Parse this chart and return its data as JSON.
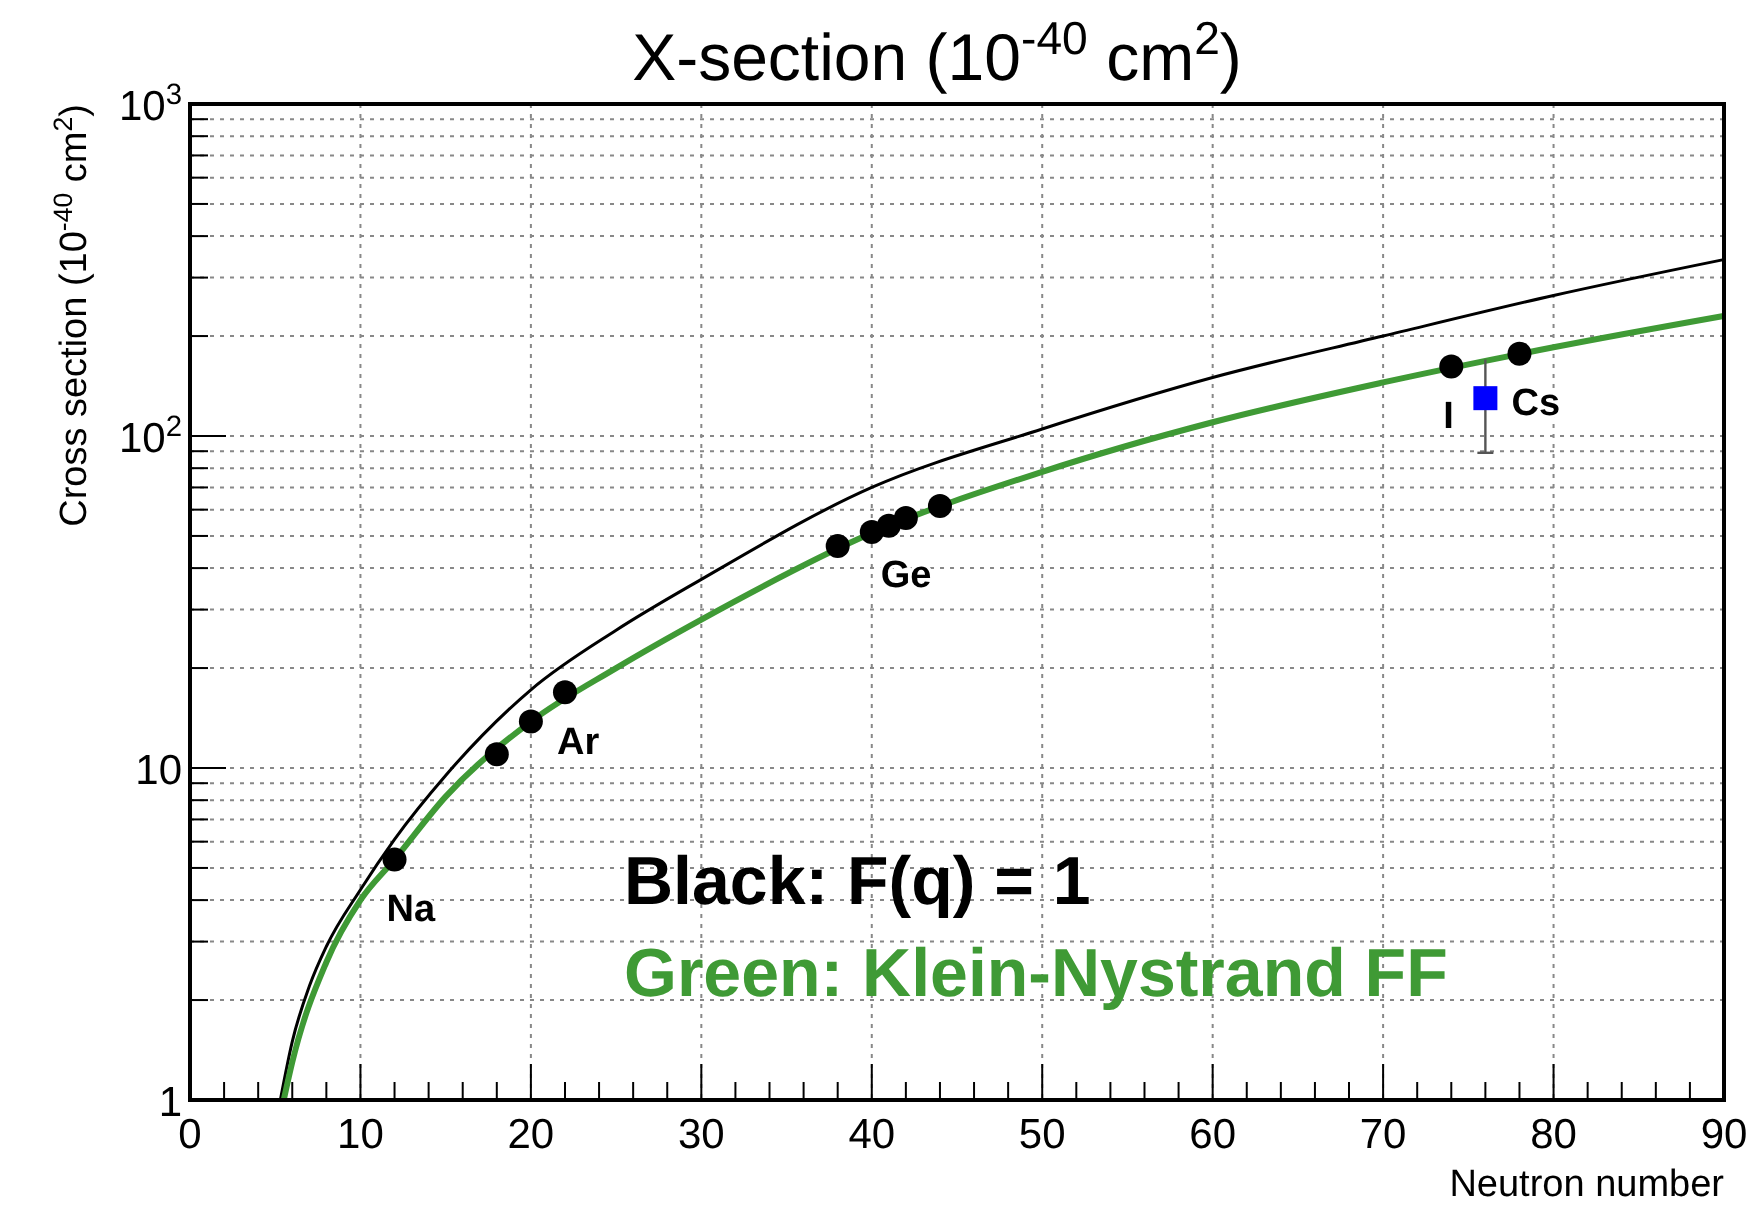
{
  "chart_data": {
    "type": "line",
    "title": "X-section (10$^{-40}$ cm$^{2}$)",
    "xlabel": "Neutron number",
    "ylabel": "Cross section (10$^{-40}$ cm$^{2}$)",
    "log": "y",
    "grid": true,
    "legend": "bottom right",
    "xlim": [
      0,
      90
    ],
    "xticks": [
      0,
      {
        "value": 2,
        "label": null
      },
      {
        "value": 4,
        "label": null
      },
      {
        "value": 6,
        "label": null
      },
      {
        "value": 8,
        "label": null
      },
      10,
      {
        "value": 12,
        "label": null
      },
      {
        "value": 14,
        "label": null
      },
      {
        "value": 16,
        "label": null
      },
      {
        "value": 18,
        "label": null
      },
      20,
      {
        "value": 22,
        "label": null
      },
      {
        "value": 24,
        "label": null
      },
      {
        "value": 26,
        "label": null
      },
      {
        "value": 28,
        "label": null
      },
      30,
      {
        "value": 32,
        "label": null
      },
      {
        "value": 34,
        "label": null
      },
      {
        "value": 36,
        "label": null
      },
      {
        "value": 38,
        "label": null
      },
      40,
      {
        "value": 42,
        "label": null
      },
      {
        "value": 44,
        "label": null
      },
      {
        "value": 46,
        "label": null
      },
      {
        "value": 48,
        "label": null
      },
      50,
      {
        "value": 52,
        "label": null
      },
      {
        "value": 54,
        "label": null
      },
      {
        "value": 56,
        "label": null
      },
      {
        "value": 58,
        "label": null
      },
      60,
      {
        "value": 62,
        "label": null
      },
      {
        "value": 64,
        "label": null
      },
      {
        "value": 66,
        "label": null
      },
      {
        "value": 68,
        "label": null
      },
      70,
      {
        "value": 72,
        "label": null
      },
      {
        "value": 74,
        "label": null
      },
      {
        "value": 76,
        "label": null
      },
      {
        "value": 78,
        "label": null
      },
      80,
      {
        "value": 82,
        "label": null
      },
      {
        "value": 84,
        "label": null
      },
      {
        "value": 86,
        "label": null
      },
      {
        "value": 88,
        "label": null
      },
      90
    ],
    "ylim": [
      1,
      1000
    ],
    "yticks": [
      1,
      {
        "value": 2,
        "label": null
      },
      {
        "value": 3,
        "label": null
      },
      {
        "value": 4,
        "label": null
      },
      {
        "value": 5,
        "label": null
      },
      {
        "value": 6,
        "label": null
      },
      {
        "value": 7,
        "label": null
      },
      {
        "value": 8,
        "label": null
      },
      {
        "value": 9,
        "label": null
      },
      10,
      {
        "value": 20,
        "label": null
      },
      {
        "value": 30,
        "label": null
      },
      {
        "value": 40,
        "label": null
      },
      {
        "value": 50,
        "label": null
      },
      {
        "value": 60,
        "label": null
      },
      {
        "value": 70,
        "label": null
      },
      {
        "value": 80,
        "label": null
      },
      {
        "value": 90,
        "label": null
      },
      {
        "value": 100,
        "label": "10$^{2}$"
      },
      {
        "value": 200,
        "label": null
      },
      {
        "value": 300,
        "label": null
      },
      {
        "value": 400,
        "label": null
      },
      {
        "value": 500,
        "label": null
      },
      {
        "value": 600,
        "label": null
      },
      {
        "value": 700,
        "label": null
      },
      {
        "value": 800,
        "label": null
      },
      {
        "value": 900,
        "label": null
      },
      {
        "value": 1000,
        "label": "10$^{3}$"
      }
    ],
    "series": [
      {
        "name": "Black: F(q) = 1",
        "color": "#000000",
        "marker": "none",
        "x": [
          5.3,
          6,
          7,
          8,
          10,
          12,
          15,
          20,
          25,
          30,
          40,
          50,
          60,
          70,
          80,
          90
        ],
        "values": [
          1,
          1.5,
          2.2,
          2.9,
          4.3,
          6.1,
          9.5,
          17.2,
          26,
          37,
          70,
          105,
          150,
          200,
          265,
          340
        ]
      },
      {
        "name": "Green: Klein-Nystrand FF",
        "color": "#3f9a35",
        "marker": "none",
        "x": [
          5.5,
          6,
          8,
          10,
          12,
          15,
          20,
          25,
          30,
          40,
          50,
          60,
          70,
          80,
          90
        ],
        "values": [
          1,
          1.3,
          2.6,
          4.0,
          5.3,
          8.2,
          13.8,
          20,
          28,
          51,
          78,
          110,
          145,
          185,
          230
        ]
      },
      {
        "color": "#000000",
        "type": "scatter",
        "marker": "circle",
        "x": [
          12,
          18,
          20,
          22,
          38,
          40,
          41,
          42,
          44,
          74,
          78
        ],
        "values": [
          5.3,
          11,
          13.8,
          16.9,
          46.6,
          51.4,
          53.7,
          56.6,
          61.5,
          162,
          177
        ]
      },
      {
        "color": "#0000ff",
        "type": "scatter",
        "marker": "square",
        "x": [
          76
        ],
        "values": [
          130
        ],
        "errors": [
          [
            89,
            170
          ]
        ]
      }
    ],
    "annotations": [
      {
        "text": "Na",
        "x": 12,
        "y": 5.3
      },
      {
        "text": "Ar",
        "x": 22,
        "y": 16.9
      },
      {
        "text": "Ge",
        "x": 41,
        "y": 53.7
      },
      {
        "text": "I",
        "x": 74,
        "y": 162
      },
      {
        "text": "Cs",
        "x": 78,
        "y": 177
      }
    ]
  }
}
